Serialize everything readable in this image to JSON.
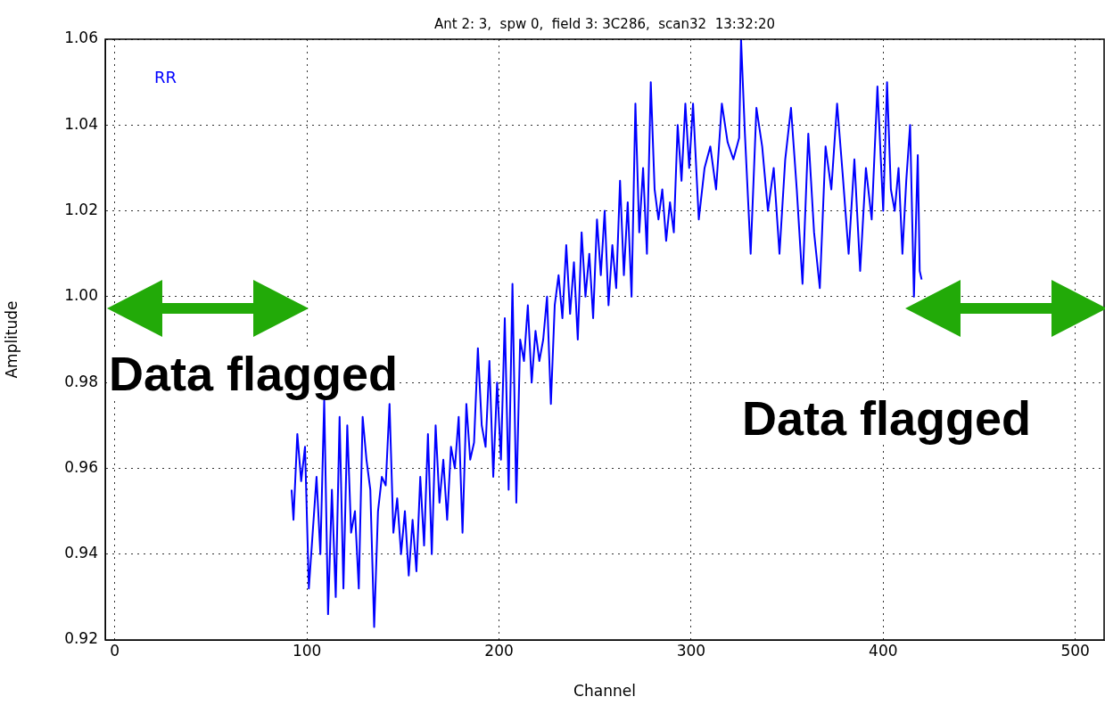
{
  "chart_data": {
    "type": "line",
    "title": "Ant 2: 3,  spw 0,  field 3: 3C286,  scan32  13:32:20",
    "xlabel": "Channel",
    "ylabel": "Amplitude",
    "xlim": [
      -5,
      515
    ],
    "xticks": [
      0,
      100,
      200,
      300,
      400,
      500
    ],
    "ylim": [
      0.92,
      1.06
    ],
    "yticks": [
      {
        "value": 0.92,
        "label": "0.92"
      },
      {
        "value": 0.94,
        "label": "0.94"
      },
      {
        "value": 0.96,
        "label": "0.96"
      },
      {
        "value": 0.98,
        "label": "0.98"
      },
      {
        "value": 1.0,
        "label": "1.00"
      },
      {
        "value": 1.02,
        "label": "1.02"
      },
      {
        "value": 1.04,
        "label": "1.04"
      },
      {
        "value": 1.06,
        "label": "1.06"
      }
    ],
    "grid": true,
    "legend": "top left",
    "marker": "none",
    "line_style": "solid",
    "annotations": [
      "Data flagged",
      "Data flagged"
    ],
    "series": [
      {
        "name": "RR",
        "color": "#0000ff",
        "x": [
          92,
          93,
          95,
          97,
          99,
          101,
          103,
          105,
          107,
          109,
          111,
          113,
          115,
          117,
          119,
          121,
          123,
          125,
          127,
          129,
          131,
          133,
          135,
          137,
          139,
          141,
          143,
          145,
          147,
          149,
          151,
          153,
          155,
          157,
          159,
          161,
          163,
          165,
          167,
          169,
          171,
          173,
          175,
          177,
          179,
          181,
          183,
          185,
          187,
          189,
          191,
          193,
          195,
          197,
          199,
          201,
          203,
          205,
          207,
          209,
          211,
          213,
          215,
          217,
          219,
          221,
          223,
          225,
          227,
          229,
          231,
          233,
          235,
          237,
          239,
          241,
          243,
          245,
          247,
          249,
          251,
          253,
          255,
          257,
          259,
          261,
          263,
          265,
          267,
          269,
          271,
          273,
          275,
          277,
          279,
          281,
          283,
          285,
          287,
          289,
          291,
          293,
          295,
          297,
          299,
          301,
          304,
          307,
          310,
          313,
          316,
          319,
          322,
          325,
          326,
          328,
          331,
          334,
          337,
          340,
          343,
          346,
          349,
          352,
          355,
          358,
          361,
          364,
          367,
          370,
          373,
          376,
          379,
          382,
          385,
          388,
          391,
          394,
          397,
          400,
          402,
          404,
          406,
          408,
          410,
          412,
          414,
          416,
          418,
          419,
          420
        ],
        "values": [
          0.955,
          0.948,
          0.968,
          0.957,
          0.965,
          0.932,
          0.945,
          0.958,
          0.94,
          0.976,
          0.926,
          0.955,
          0.93,
          0.972,
          0.932,
          0.97,
          0.945,
          0.95,
          0.932,
          0.972,
          0.962,
          0.955,
          0.923,
          0.95,
          0.958,
          0.956,
          0.975,
          0.945,
          0.953,
          0.94,
          0.95,
          0.935,
          0.948,
          0.936,
          0.958,
          0.942,
          0.968,
          0.94,
          0.97,
          0.952,
          0.962,
          0.948,
          0.965,
          0.96,
          0.972,
          0.945,
          0.975,
          0.962,
          0.966,
          0.988,
          0.97,
          0.965,
          0.985,
          0.958,
          0.98,
          0.962,
          0.995,
          0.955,
          1.003,
          0.952,
          0.99,
          0.985,
          0.998,
          0.98,
          0.992,
          0.985,
          0.99,
          1.0,
          0.975,
          0.998,
          1.005,
          0.995,
          1.012,
          0.996,
          1.008,
          0.99,
          1.015,
          1.0,
          1.01,
          0.995,
          1.018,
          1.005,
          1.02,
          0.998,
          1.012,
          1.002,
          1.027,
          1.005,
          1.022,
          1.0,
          1.045,
          1.015,
          1.03,
          1.01,
          1.05,
          1.025,
          1.018,
          1.025,
          1.013,
          1.022,
          1.015,
          1.04,
          1.027,
          1.045,
          1.03,
          1.045,
          1.018,
          1.03,
          1.035,
          1.025,
          1.045,
          1.036,
          1.032,
          1.037,
          1.06,
          1.038,
          1.01,
          1.044,
          1.035,
          1.02,
          1.03,
          1.01,
          1.032,
          1.044,
          1.025,
          1.003,
          1.038,
          1.015,
          1.002,
          1.035,
          1.025,
          1.045,
          1.028,
          1.01,
          1.032,
          1.006,
          1.03,
          1.018,
          1.049,
          1.02,
          1.05,
          1.025,
          1.02,
          1.03,
          1.01,
          1.027,
          1.04,
          1.0,
          1.033,
          1.006,
          1.004
        ]
      }
    ]
  }
}
